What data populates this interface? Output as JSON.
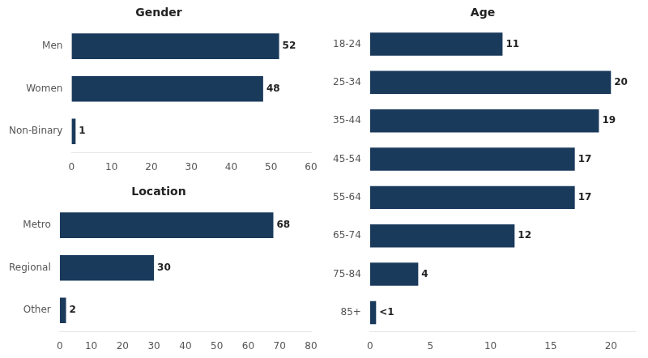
{
  "chart_data": [
    {
      "type": "bar",
      "orientation": "horizontal",
      "title": "Gender",
      "categories": [
        "Men",
        "Women",
        "Non-Binary"
      ],
      "values": [
        52,
        48,
        1
      ],
      "color": "#1a3a5c",
      "xlim": [
        0,
        60
      ],
      "xticks": [
        0,
        10,
        20,
        30,
        40,
        50,
        60
      ],
      "data_labels": true,
      "grid": false
    },
    {
      "type": "bar",
      "orientation": "horizontal",
      "title": "Location",
      "categories": [
        "Metro",
        "Regional",
        "Other"
      ],
      "values": [
        68,
        30,
        2
      ],
      "color": "#1a3a5c",
      "xlim": [
        0,
        80
      ],
      "xticks": [
        0,
        10,
        20,
        30,
        40,
        50,
        60,
        70,
        80
      ],
      "data_labels": true,
      "grid": false
    },
    {
      "type": "bar",
      "orientation": "horizontal",
      "title": "Age",
      "categories": [
        "18-24",
        "25-34",
        "35-44",
        "45-54",
        "55-64",
        "65-74",
        "75-84",
        "85+"
      ],
      "values": [
        11,
        20,
        19,
        17,
        17,
        12,
        4,
        0.5
      ],
      "value_labels": [
        "11",
        "20",
        "19",
        "17",
        "17",
        "12",
        "4",
        "<1"
      ],
      "color": "#1a3a5c",
      "xlim": [
        0,
        22
      ],
      "xticks": [
        0,
        5,
        10,
        15,
        20
      ],
      "data_labels": true,
      "grid": false
    }
  ]
}
